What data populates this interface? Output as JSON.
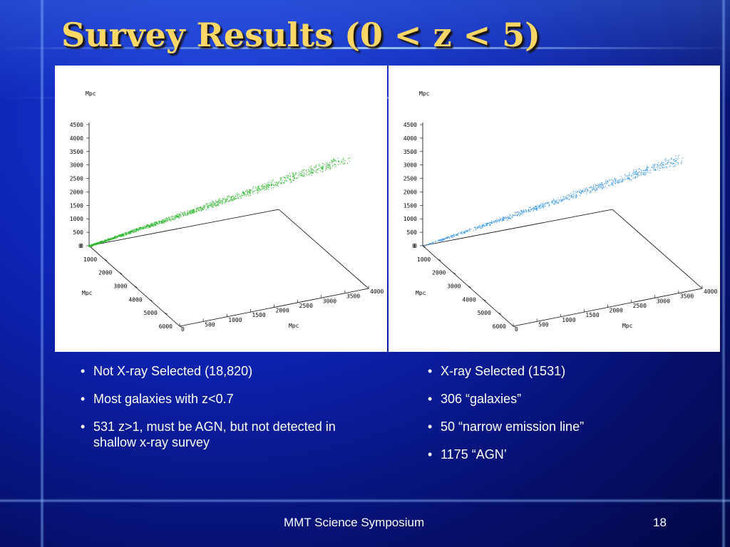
{
  "slide": {
    "title": "Survey Results (0 < z < 5)",
    "footer_text": "MMT Science Symposium",
    "page_number": "18"
  },
  "plots": {
    "axis_unit": "Mpc",
    "left": {
      "point_color": "#2fb82f",
      "z_ticks": [
        "4500",
        "4000",
        "3500",
        "3000",
        "2500",
        "2000",
        "1500",
        "1000",
        "500",
        "0"
      ],
      "y_ticks": [
        "0",
        "1000",
        "2000",
        "3000",
        "4000",
        "5000",
        "6000"
      ],
      "x_ticks": [
        "0",
        "500",
        "1000",
        "1500",
        "2000",
        "2500",
        "3000",
        "3500",
        "4000"
      ]
    },
    "right": {
      "point_color": "#3d9ae8",
      "z_ticks": [
        "4500",
        "4000",
        "3500",
        "3000",
        "2500",
        "2000",
        "1500",
        "1000",
        "500",
        "0"
      ],
      "y_ticks": [
        "0",
        "1000",
        "2000",
        "3000",
        "4000",
        "5000",
        "6000"
      ],
      "x_ticks": [
        "0",
        "500",
        "1000",
        "1500",
        "2000",
        "2500",
        "3000",
        "3500",
        "4000"
      ]
    }
  },
  "left_bullets": [
    "Not X-ray Selected (18,820)",
    "Most galaxies with z<0.7",
    "531 z>1, must be AGN, but not detected in shallow x-ray survey"
  ],
  "right_bullets": [
    "X-ray Selected (1531)",
    "306 “galaxies”",
    "50 “narrow emission line”",
    "1175 “AGN’"
  ]
}
